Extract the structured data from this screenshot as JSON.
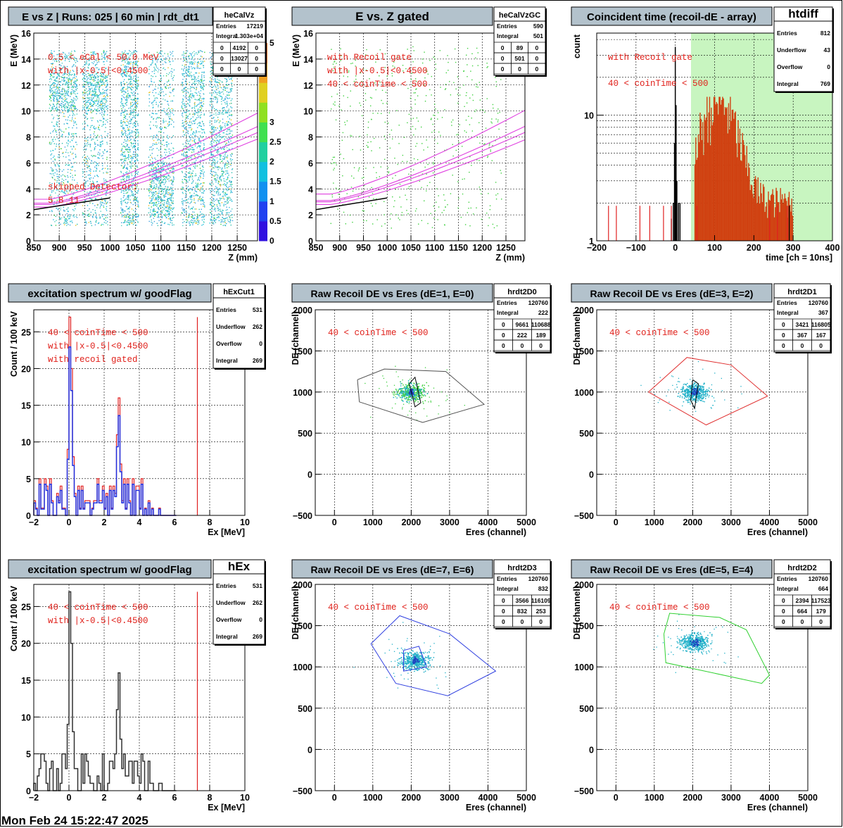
{
  "footer": "Mon Feb 24 15:22:47 2025",
  "colors": {
    "title_bg": "#b3c2cc",
    "stats_bg": "#ffffff",
    "annotation": "#e0201a",
    "magenta": "#e040e0",
    "black_line": "#000000",
    "red_hist": "#e02020",
    "blue_hist": "#2030e0",
    "orange_hist": "#d04010",
    "green_band": "#c8f5c0",
    "scatter_cyan": "#20b0c8",
    "scatter_green": "#40d040",
    "cut_black": "#505050",
    "cut_red": "#e03030",
    "cut_blue": "#3040e0",
    "cut_green": "#30d030"
  },
  "panels": [
    {
      "id": "p1",
      "title": "E vs Z | Runs: 025 | 60 min | rdt_dt1",
      "stats": {
        "name": "heCalVz",
        "rows": [
          [
            "Entries",
            "17219"
          ],
          [
            "Integral",
            "1.303e+04"
          ]
        ],
        "grid": [
          [
            "0",
            "4192",
            "0"
          ],
          [
            "0",
            "13027",
            "0"
          ],
          [
            "0",
            "0",
            "0"
          ]
        ]
      },
      "annotations": [
        "0.5 < eCal < 50.0 MeV",
        "with |x-0.5|<0.4500"
      ],
      "annotations2": [
        "skipped Detector:",
        "5    8    11"
      ],
      "chart_data": {
        "type": "heatmap",
        "xlabel": "Z (mm)",
        "ylabel": "E (MeV)",
        "xlim": [
          850,
          1290
        ],
        "ylim": [
          0,
          16
        ],
        "xticks": [
          850,
          900,
          950,
          1000,
          1050,
          1100,
          1150,
          1200,
          1250
        ],
        "yticks": [
          0,
          2,
          4,
          6,
          8,
          10,
          12,
          14,
          16
        ],
        "palette_ticks": [
          "0",
          "0.5",
          "1",
          "1.5",
          "2",
          "2.5",
          "3",
          "3.5",
          "4",
          "4.5",
          "5"
        ],
        "detector_columns": [
          [
            880,
            935
          ],
          [
            945,
            995
          ],
          [
            1020,
            1055
          ],
          [
            1075,
            1125
          ],
          [
            1140,
            1185
          ],
          [
            1195,
            1240
          ]
        ],
        "grid": true
      }
    },
    {
      "id": "p2",
      "title": "E vs. Z gated",
      "stats": {
        "name": "heCalVzGC",
        "rows": [
          [
            "Entries",
            "590"
          ],
          [
            "Integral",
            "501"
          ]
        ],
        "grid": [
          [
            "0",
            "89",
            "0"
          ],
          [
            "0",
            "501",
            "0"
          ],
          [
            "0",
            "0",
            "0"
          ]
        ]
      },
      "annotations": [
        "with Recoil gate",
        "with |x-0.5|<0.4500",
        "40 < coinTime < 500"
      ],
      "chart_data": {
        "type": "scatter",
        "xlabel": "Z (mm)",
        "ylabel": "E (MeV)",
        "xlim": [
          850,
          1290
        ],
        "ylim": [
          0,
          16
        ],
        "xticks": [
          850,
          900,
          950,
          1000,
          1050,
          1100,
          1150,
          1200,
          1250
        ],
        "yticks": [
          0,
          2,
          4,
          6,
          8,
          10,
          12,
          14,
          16
        ],
        "grid": true
      }
    },
    {
      "id": "p3",
      "title": "Coincident time (recoil-dE - array)",
      "stats": {
        "name": "htdiff",
        "rows": [
          [
            "Entries",
            "812"
          ],
          [
            "Underflow",
            "43"
          ],
          [
            "Overflow",
            "0"
          ],
          [
            "Integral",
            "769"
          ]
        ]
      },
      "annotations": [
        "with Recoil gate",
        "40 < coinTime < 500"
      ],
      "chart_data": {
        "type": "bar",
        "xlabel": "time [ch = 10ns]",
        "ylabel": "count",
        "xlim": [
          -200,
          400
        ],
        "ylim": [
          1,
          45
        ],
        "log_y": true,
        "xticks": [
          -200,
          -100,
          0,
          100,
          200,
          300,
          400
        ],
        "yticks_labeled": [
          1,
          10
        ],
        "gate": [
          40,
          500
        ],
        "grid": true
      }
    },
    {
      "id": "p4",
      "title": "excitation spectrum w/ goodFlag",
      "stats": {
        "name": "hExCut1",
        "rows": [
          [
            "Entries",
            "531"
          ],
          [
            "Underflow",
            "262"
          ],
          [
            "Overflow",
            "0"
          ],
          [
            "Integral",
            "269"
          ]
        ]
      },
      "annotations": [
        "40 < coinTime < 500",
        "with |x-0.5|<0.4500",
        "with recoil gated"
      ],
      "chart_data": {
        "type": "bar",
        "xlabel": "Ex [MeV]",
        "ylabel": "Count / 100 keV",
        "xlim": [
          -2,
          10
        ],
        "ylim": [
          0,
          28
        ],
        "xticks": [
          -2,
          0,
          2,
          4,
          6,
          8,
          10
        ],
        "yticks": [
          0,
          5,
          10,
          15,
          20,
          25
        ],
        "marker_x": 7.3,
        "grid": true
      }
    },
    {
      "id": "p5",
      "title": "Raw Recoil DE vs Eres (dE=1, E=0)",
      "stats": {
        "name": "hrdt2D0",
        "rows": [
          [
            "Entries",
            "120760"
          ],
          [
            "Integral",
            "222"
          ]
        ],
        "grid": [
          [
            "0",
            "9661",
            "110688"
          ],
          [
            "0",
            "222",
            "189"
          ],
          [
            "0",
            "0",
            "0"
          ]
        ]
      },
      "annotations": [
        "40 < coinTime < 500"
      ],
      "chart_data": {
        "type": "scatter",
        "xlabel": "Eres (channel)",
        "ylabel": "DE (channel)",
        "xlim": [
          -500,
          5000
        ],
        "ylim": [
          -500,
          2000
        ],
        "xticks": [
          0,
          1000,
          2000,
          3000,
          4000,
          5000
        ],
        "yticks": [
          -500,
          0,
          500,
          1000,
          1500,
          2000
        ],
        "cut_outer": [
          [
            600,
            1150
          ],
          [
            1300,
            1280
          ],
          [
            2900,
            1250
          ],
          [
            3900,
            850
          ],
          [
            2300,
            630
          ],
          [
            650,
            880
          ]
        ],
        "cut_inner": [
          [
            1950,
            1100
          ],
          [
            2100,
            1180
          ],
          [
            2250,
            870
          ],
          [
            2100,
            820
          ]
        ],
        "center": [
          2000,
          1000
        ],
        "grid": true
      }
    },
    {
      "id": "p6",
      "title": "Raw Recoil DE vs Eres (dE=3, E=2)",
      "stats": {
        "name": "hrdt2D1",
        "rows": [
          [
            "Entries",
            "120760"
          ],
          [
            "Integral",
            "367"
          ]
        ],
        "grid": [
          [
            "0",
            "3421",
            "116805"
          ],
          [
            "0",
            "367",
            "167"
          ],
          [
            "0",
            "0",
            "0"
          ]
        ]
      },
      "annotations": [
        "40 < coinTime < 500"
      ],
      "chart_data": {
        "type": "scatter",
        "xlabel": "Eres (channel)",
        "ylabel": "DE (channel)",
        "xlim": [
          -500,
          5000
        ],
        "ylim": [
          -500,
          2000
        ],
        "xticks": [
          0,
          1000,
          2000,
          3000,
          4000,
          5000
        ],
        "yticks": [
          -500,
          0,
          500,
          1000,
          1500,
          2000
        ],
        "cut_outer": [
          [
            850,
            1000
          ],
          [
            1850,
            1420
          ],
          [
            3000,
            1330
          ],
          [
            3950,
            950
          ],
          [
            2350,
            600
          ]
        ],
        "cut_inner": [
          [
            2000,
            1150
          ],
          [
            2150,
            1100
          ],
          [
            2050,
            800
          ],
          [
            1950,
            900
          ]
        ],
        "center": [
          2050,
          1000
        ],
        "grid": true
      }
    },
    {
      "id": "p7",
      "title": "excitation spectrum w/ goodFlag",
      "stats": {
        "name": "hEx",
        "rows": [
          [
            "Entries",
            "531"
          ],
          [
            "Underflow",
            "262"
          ],
          [
            "Overflow",
            "0"
          ],
          [
            "Integral",
            "269"
          ]
        ]
      },
      "annotations": [
        "40 < coinTime < 500",
        "with |x-0.5|<0.4500"
      ],
      "chart_data": {
        "type": "bar",
        "xlabel": "Ex [MeV]",
        "ylabel": "Count / 100 keV",
        "xlim": [
          -2,
          10
        ],
        "ylim": [
          0,
          28
        ],
        "xticks": [
          -2,
          0,
          2,
          4,
          6,
          8,
          10
        ],
        "yticks": [
          0,
          5,
          10,
          15,
          20,
          25
        ],
        "marker_x": 7.3,
        "grid": true
      }
    },
    {
      "id": "p8",
      "title": "Raw Recoil DE vs Eres (dE=7, E=6)",
      "stats": {
        "name": "hrdt2D3",
        "rows": [
          [
            "Entries",
            "120760"
          ],
          [
            "Integral",
            "832"
          ]
        ],
        "grid": [
          [
            "0",
            "3566",
            "116109"
          ],
          [
            "0",
            "832",
            "253"
          ],
          [
            "0",
            "0",
            "0"
          ]
        ]
      },
      "annotations": [
        "40 < coinTime < 500"
      ],
      "chart_data": {
        "type": "scatter",
        "xlabel": "Eres (channel)",
        "ylabel": "DE (channel)",
        "xlim": [
          -500,
          5000
        ],
        "ylim": [
          -500,
          2000
        ],
        "xticks": [
          0,
          1000,
          2000,
          3000,
          4000,
          5000
        ],
        "yticks": [
          -500,
          0,
          500,
          1000,
          1500,
          2000
        ],
        "cut_outer": [
          [
            950,
            1280
          ],
          [
            1700,
            1620
          ],
          [
            3000,
            1400
          ],
          [
            4200,
            950
          ],
          [
            2950,
            650
          ],
          [
            1600,
            800
          ]
        ],
        "cut_inner": [
          [
            1800,
            1200
          ],
          [
            2200,
            1250
          ],
          [
            2400,
            1000
          ],
          [
            1800,
            950
          ]
        ],
        "center": [
          2100,
          1080
        ],
        "grid": true
      }
    },
    {
      "id": "p9",
      "title": "Raw Recoil DE vs Eres (dE=5, E=4)",
      "stats": {
        "name": "hrdt2D2",
        "rows": [
          [
            "Entries",
            "120760"
          ],
          [
            "Integral",
            "664"
          ]
        ],
        "grid": [
          [
            "0",
            "2394",
            "117523"
          ],
          [
            "0",
            "664",
            "179"
          ],
          [
            "0",
            "0",
            "0"
          ]
        ]
      },
      "annotations": [
        "40 < coinTime < 500"
      ],
      "chart_data": {
        "type": "scatter",
        "xlabel": "Eres (channel)",
        "ylabel": "DE (channel)",
        "xlim": [
          -500,
          5000
        ],
        "ylim": [
          -500,
          2000
        ],
        "xticks": [
          0,
          1000,
          2000,
          3000,
          4000,
          5000
        ],
        "yticks": [
          -500,
          0,
          500,
          1000,
          1500,
          2000
        ],
        "cut_outer": [
          [
            1250,
            1400
          ],
          [
            1400,
            1650
          ],
          [
            2700,
            1600
          ],
          [
            3400,
            1450
          ],
          [
            4000,
            900
          ],
          [
            3800,
            800
          ],
          [
            1300,
            1050
          ]
        ],
        "cut_inner": [],
        "center": [
          2050,
          1300
        ],
        "grid": true
      }
    }
  ]
}
